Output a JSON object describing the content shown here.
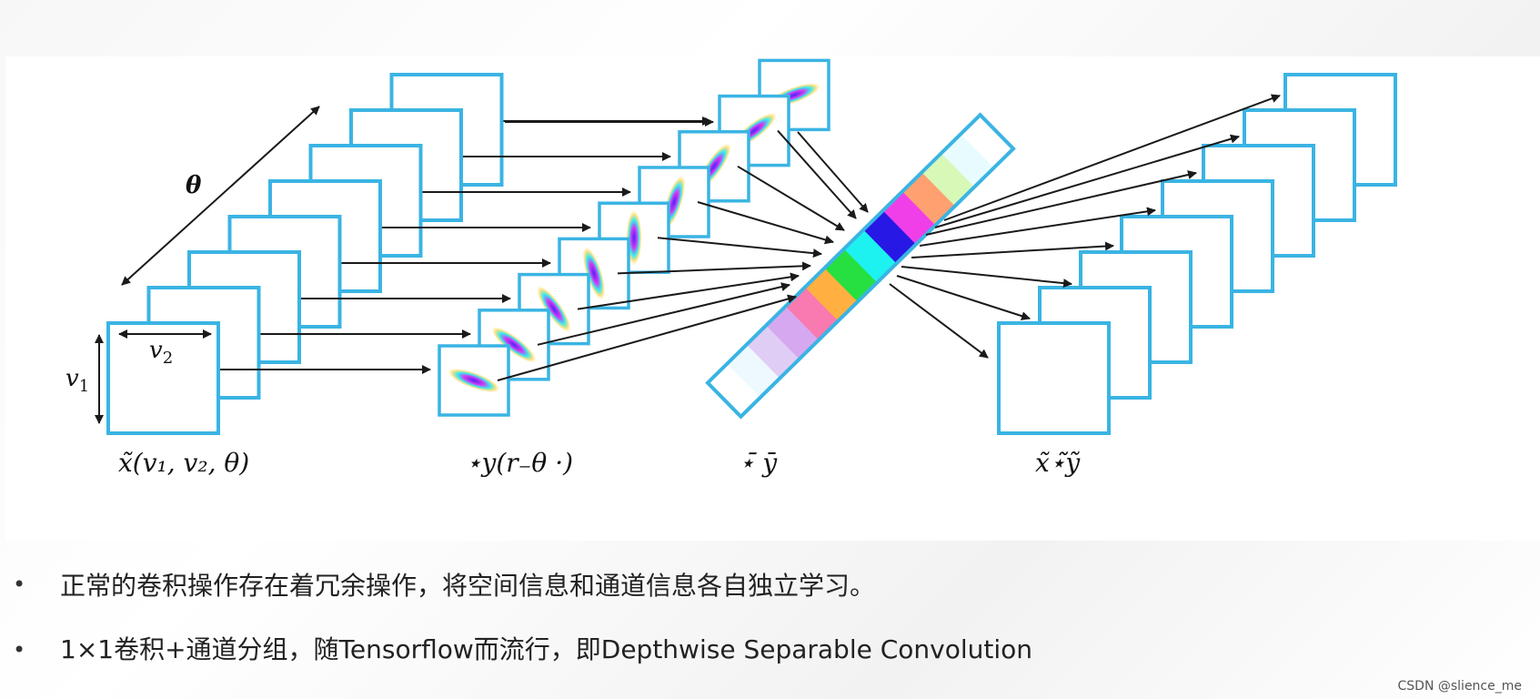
{
  "diagram": {
    "labels": {
      "theta": "θ",
      "v1": "v",
      "v1_sub": "1",
      "v2": "v",
      "v2_sub": "2",
      "input_caption": "x̃(v₁, v₂, θ)",
      "filter_caption": "⋆y(r₋θ ·)",
      "channel_caption": "⋆̄ ȳ",
      "output_caption": "x̃⋆̃ỹ"
    },
    "colors": {
      "frame": "#3ab4e3",
      "arrow": "#1a1a1a",
      "bar_cells": [
        "#ffffff",
        "#eef8ff",
        "#e0cdf5",
        "#d6a8f0",
        "#f87ab0",
        "#ffb040",
        "#25e040",
        "#1ef2f0",
        "#2818e6",
        "#f03ee8",
        "#ffa070",
        "#d8f8b8",
        "#e8fcff",
        "#ffffff"
      ]
    }
  },
  "bullets": [
    {
      "marker": "•",
      "text": "正常的卷积操作存在着冗余操作，将空间信息和通道信息各自独立学习。"
    },
    {
      "marker": "•",
      "text": "1×1卷积+通道分组，随Tensorflow而流行，即Depthwise Separable Convolution"
    }
  ],
  "watermark": "CSDN @slience_me"
}
